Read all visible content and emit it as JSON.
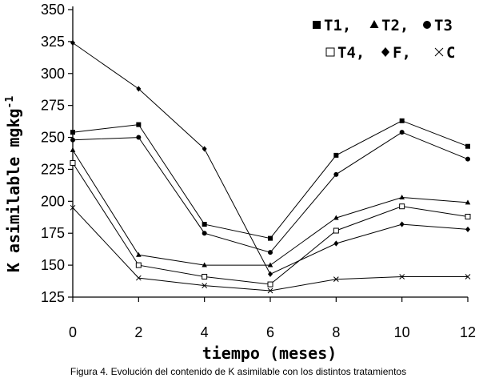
{
  "chart_data": {
    "type": "line",
    "xlabel": "tiempo (meses)",
    "ylabel": "K asimilable mgkg",
    "ylabel_superscript": "-1",
    "caption": "Figura 4. Evolución del contenido de K asimilable con los distintos tratamientos",
    "x": [
      0,
      2,
      4,
      6,
      8,
      10,
      12
    ],
    "xlim": [
      0,
      12
    ],
    "ylim": [
      125,
      350
    ],
    "yticks": [
      125,
      150,
      175,
      200,
      225,
      250,
      275,
      300,
      325,
      350
    ],
    "xticks": [
      0,
      2,
      4,
      6,
      8,
      10,
      12
    ],
    "grid": false,
    "legend_position": "top-right",
    "legend_rows": [
      [
        {
          "series": "T1",
          "marker": "filled-square",
          "text": "T1,"
        },
        {
          "series": "T2",
          "marker": "filled-triangle",
          "text": "T2,"
        },
        {
          "series": "T3",
          "marker": "filled-circle",
          "text": "T3"
        }
      ],
      [
        {
          "series": "T4",
          "marker": "open-square",
          "text": "T4,"
        },
        {
          "series": "F",
          "marker": "filled-diamond",
          "text": "F,"
        },
        {
          "series": "C",
          "marker": "x",
          "text": "C"
        }
      ]
    ],
    "series": [
      {
        "name": "T1",
        "marker": "filled-square",
        "values": [
          254,
          260,
          182,
          171,
          236,
          263,
          243
        ]
      },
      {
        "name": "T2",
        "marker": "filled-triangle",
        "values": [
          240,
          158,
          150,
          150,
          187,
          203,
          199
        ]
      },
      {
        "name": "T3",
        "marker": "filled-circle",
        "values": [
          248,
          250,
          175,
          160,
          221,
          254,
          233
        ]
      },
      {
        "name": "T4",
        "marker": "open-square",
        "values": [
          230,
          150,
          141,
          135,
          177,
          196,
          188
        ]
      },
      {
        "name": "F",
        "marker": "filled-diamond",
        "values": [
          324,
          288,
          241,
          143,
          167,
          182,
          178
        ]
      },
      {
        "name": "C",
        "marker": "x",
        "values": [
          195,
          140,
          134,
          130,
          139,
          141,
          141
        ]
      }
    ]
  }
}
